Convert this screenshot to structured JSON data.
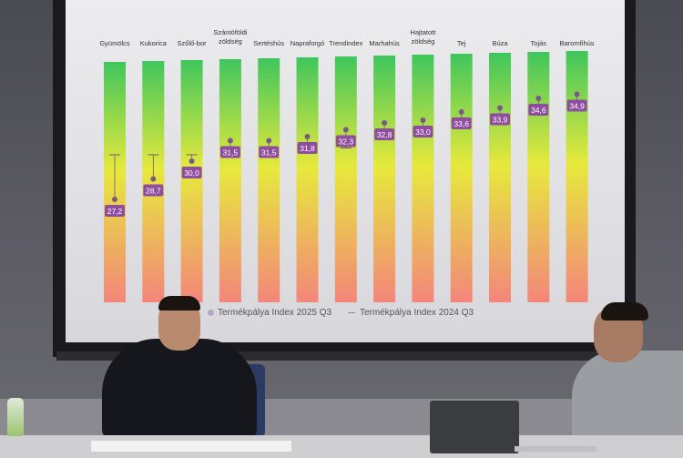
{
  "chart": {
    "categories": [
      "Gyümölcs",
      "Kukorica",
      "Szőlő-bor",
      "Szántóföldi\nzöldség",
      "Sertéshús",
      "Napraforgó",
      "Trendindex",
      "Marhahús",
      "Hajtatott\nzöldség",
      "Tej",
      "Búza",
      "Tojás",
      "Baromfihús"
    ],
    "index_2025_q3": [
      27.2,
      28.7,
      30.0,
      31.5,
      31.5,
      31.8,
      32.3,
      32.8,
      33.0,
      33.6,
      33.9,
      34.6,
      34.9
    ],
    "value_labels": [
      "27,2",
      "28,7",
      "30,0",
      "31,5",
      "31,5",
      "31,8",
      "32,3",
      "32,8",
      "33,0",
      "33,6",
      "33,9",
      "34,6",
      "34,9"
    ],
    "index_2024_q3": [
      31.0,
      31.0,
      31.0,
      31.2,
      31.3,
      31.3,
      31.5,
      32.7,
      32.9,
      33.4,
      33.8,
      34.7,
      34.8
    ],
    "legend": {
      "series_2025": "Termékpálya Index 2025 Q3",
      "series_2024": "Termékpálya Index 2024 Q3"
    },
    "label_color": "#8e4d9e",
    "gradient_colors": [
      "#40c860",
      "#e8ea3a",
      "#f07a70"
    ]
  }
}
